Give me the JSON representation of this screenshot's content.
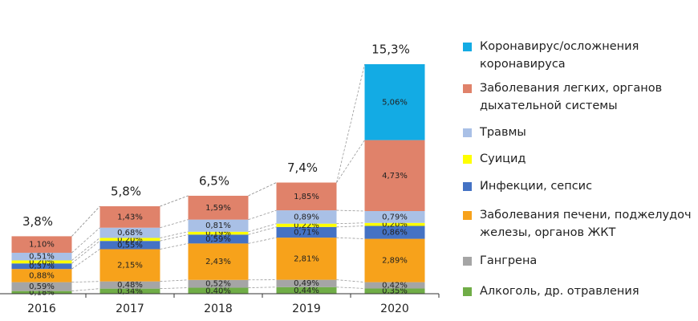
{
  "chart_data": {
    "type": "stacked_bar",
    "categories": [
      "2016",
      "2017",
      "2018",
      "2019",
      "2020"
    ],
    "totals": {
      "values": [
        3.8,
        5.8,
        6.5,
        7.4,
        15.3
      ],
      "value_labels": [
        "3,8%",
        "5,8%",
        "6,5%",
        "7,4%",
        "15,3%"
      ]
    },
    "series": [
      {
        "name": "Алкоголь, др. отравления",
        "color": "#70ad47",
        "values": [
          0.18,
          0.34,
          0.4,
          0.44,
          0.35
        ],
        "value_labels": [
          "0,18%",
          "0,34%",
          "0,40%",
          "0,44%",
          "0,35%"
        ]
      },
      {
        "name": "Гангрена",
        "color": "#a5a5a5",
        "values": [
          0.59,
          0.48,
          0.52,
          0.49,
          0.42
        ],
        "value_labels": [
          "0,59%",
          "0,48%",
          "0,52%",
          "0,49%",
          "0,42%"
        ]
      },
      {
        "name": "Заболевания печени, поджелудоч железы, органов ЖКТ",
        "color": "#f7a21b",
        "values": [
          0.88,
          2.15,
          2.43,
          2.81,
          2.89
        ],
        "value_labels": [
          "0,88%",
          "2,15%",
          "2,43%",
          "2,81%",
          "2,89%"
        ]
      },
      {
        "name": "Инфекции, сепсис",
        "color": "#4472c4",
        "values": [
          0.37,
          0.55,
          0.59,
          0.71,
          0.86
        ],
        "value_labels": [
          "0,37%",
          "0,55%",
          "0,59%",
          "0,71%",
          "0,86%"
        ]
      },
      {
        "name": "Суицид",
        "color": "#ffff00",
        "values": [
          0.2,
          0.2,
          0.19,
          0.22,
          0.2
        ],
        "value_labels": [
          "0,20%",
          "0,20%",
          "0,19%",
          "0,22%",
          "0,20%"
        ]
      },
      {
        "name": "Травмы",
        "color": "#a9c0e6",
        "values": [
          0.51,
          0.68,
          0.81,
          0.89,
          0.79
        ],
        "value_labels": [
          "0,51%",
          "0,68%",
          "0,81%",
          "0,89%",
          "0,79%"
        ]
      },
      {
        "name": "Заболевания легких, органов дыхательной системы",
        "color": "#e0826a",
        "values": [
          1.1,
          1.43,
          1.59,
          1.85,
          4.73
        ],
        "value_labels": [
          "1,10%",
          "1,43%",
          "1,59%",
          "1,85%",
          "4,73%"
        ]
      },
      {
        "name": "Коронавирус/осложнения коронавируса",
        "color": "#13abe4",
        "values": [
          null,
          null,
          null,
          null,
          5.06
        ],
        "value_labels": [
          null,
          null,
          null,
          null,
          "5,06%"
        ]
      }
    ]
  }
}
